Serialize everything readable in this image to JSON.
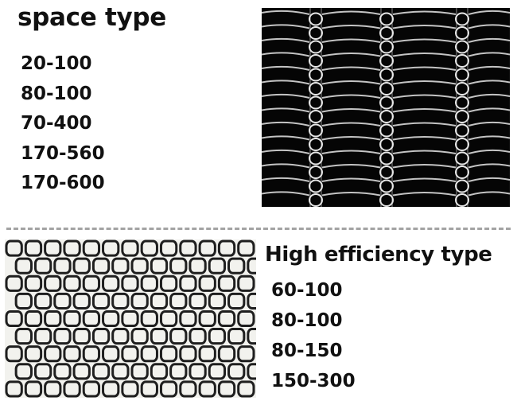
{
  "space_type": {
    "title": "space type",
    "items": [
      "20-100",
      "80-100",
      "70-400",
      "170-560",
      "170-600"
    ]
  },
  "high_efficiency_type": {
    "title": "High efficiency type",
    "items": [
      "60-100",
      "80-100",
      "80-150",
      "150-300"
    ]
  },
  "colors": {
    "dark_mesh_background": "#050505",
    "dark_mesh_wire": "#e6e6e6",
    "light_mesh_background": "#f2f2ee",
    "light_mesh_wire": "#1f1f1f",
    "divider": "#a3a3a3"
  }
}
